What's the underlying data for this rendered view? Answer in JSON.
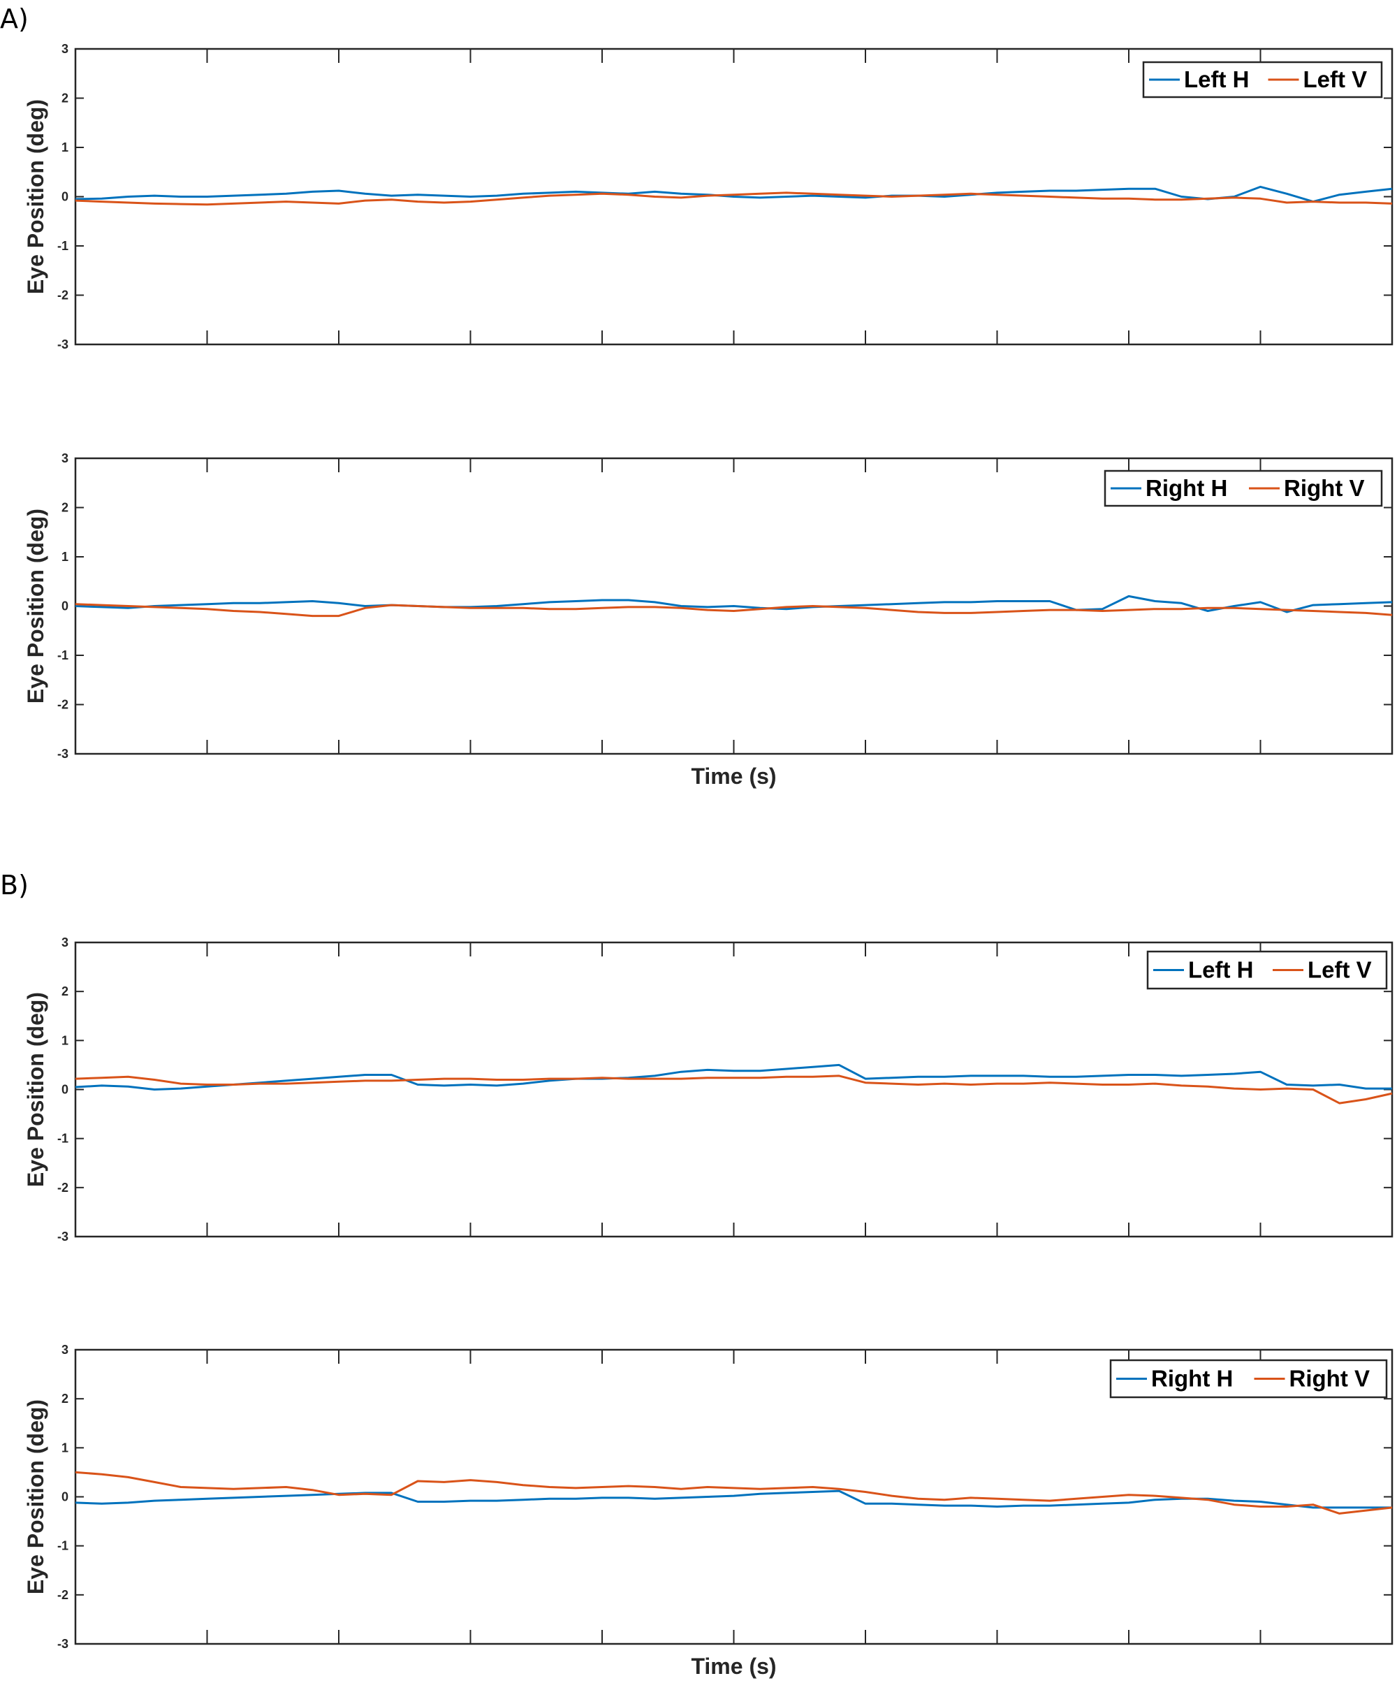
{
  "panels": [
    {
      "label": "A)"
    },
    {
      "label": "B)"
    }
  ],
  "colors": {
    "blue": "#0072BD",
    "orange": "#D95319",
    "axis": "#262626"
  },
  "chart_data": [
    {
      "type": "line",
      "panel": "A)",
      "xlabel": "",
      "ylabel": "Eye Position (deg)",
      "ylim": [
        -3,
        3
      ],
      "yticks": [
        "3",
        "2",
        "1",
        "0",
        "-1",
        "-2",
        "-3"
      ],
      "x_tick_count": 10,
      "legend": "top-right",
      "x": [
        0,
        2,
        4,
        6,
        8,
        10,
        12,
        14,
        16,
        18,
        20,
        22,
        24,
        26,
        28,
        30,
        32,
        34,
        36,
        38,
        40,
        42,
        44,
        46,
        48,
        50,
        52,
        54,
        56,
        58,
        60,
        62,
        64,
        66,
        68,
        70,
        72,
        74,
        76,
        78,
        80,
        82,
        84,
        86,
        88,
        90,
        92,
        94,
        96,
        98,
        100
      ],
      "series": [
        {
          "name": "Left H",
          "color": "#0072BD",
          "values": [
            -0.05,
            -0.04,
            0.0,
            0.02,
            0.0,
            0.0,
            0.02,
            0.04,
            0.06,
            0.1,
            0.12,
            0.06,
            0.02,
            0.04,
            0.02,
            0.0,
            0.02,
            0.06,
            0.08,
            0.1,
            0.08,
            0.06,
            0.1,
            0.06,
            0.04,
            0.0,
            -0.02,
            0.0,
            0.02,
            0.0,
            -0.02,
            0.02,
            0.02,
            0.0,
            0.04,
            0.08,
            0.1,
            0.12,
            0.12,
            0.14,
            0.16,
            0.16,
            0.0,
            -0.05,
            0.0,
            0.2,
            0.06,
            -0.1,
            0.04,
            0.1,
            0.16
          ]
        },
        {
          "name": "Left V",
          "color": "#D95319",
          "values": [
            -0.08,
            -0.1,
            -0.12,
            -0.14,
            -0.15,
            -0.16,
            -0.14,
            -0.12,
            -0.1,
            -0.12,
            -0.14,
            -0.08,
            -0.06,
            -0.1,
            -0.12,
            -0.1,
            -0.06,
            -0.02,
            0.02,
            0.04,
            0.06,
            0.04,
            0.0,
            -0.02,
            0.02,
            0.04,
            0.06,
            0.08,
            0.06,
            0.04,
            0.02,
            0.0,
            0.02,
            0.04,
            0.06,
            0.04,
            0.02,
            0.0,
            -0.02,
            -0.04,
            -0.04,
            -0.06,
            -0.06,
            -0.04,
            -0.02,
            -0.04,
            -0.12,
            -0.1,
            -0.12,
            -0.12,
            -0.14
          ]
        }
      ]
    },
    {
      "type": "line",
      "panel": "A)",
      "xlabel": "Time (s)",
      "ylabel": "Eye Position (deg)",
      "ylim": [
        -3,
        3
      ],
      "yticks": [
        "3",
        "2",
        "1",
        "0",
        "-1",
        "-2",
        "-3"
      ],
      "x_tick_count": 10,
      "legend": "top-right",
      "x": [
        0,
        2,
        4,
        6,
        8,
        10,
        12,
        14,
        16,
        18,
        20,
        22,
        24,
        26,
        28,
        30,
        32,
        34,
        36,
        38,
        40,
        42,
        44,
        46,
        48,
        50,
        52,
        54,
        56,
        58,
        60,
        62,
        64,
        66,
        68,
        70,
        72,
        74,
        76,
        78,
        80,
        82,
        84,
        86,
        88,
        90,
        92,
        94,
        96,
        98,
        100
      ],
      "series": [
        {
          "name": "Right H",
          "color": "#0072BD",
          "values": [
            0.0,
            -0.02,
            -0.04,
            0.0,
            0.02,
            0.04,
            0.06,
            0.06,
            0.08,
            0.1,
            0.06,
            0.0,
            0.02,
            0.0,
            -0.02,
            -0.02,
            0.0,
            0.04,
            0.08,
            0.1,
            0.12,
            0.12,
            0.08,
            0.0,
            -0.02,
            0.0,
            -0.04,
            -0.06,
            -0.02,
            0.0,
            0.02,
            0.04,
            0.06,
            0.08,
            0.08,
            0.1,
            0.1,
            0.1,
            -0.08,
            -0.06,
            0.2,
            0.1,
            0.06,
            -0.1,
            0.0,
            0.08,
            -0.12,
            0.02,
            0.04,
            0.06,
            0.08
          ]
        },
        {
          "name": "Right V",
          "color": "#D95319",
          "values": [
            0.04,
            0.02,
            0.0,
            -0.02,
            -0.04,
            -0.06,
            -0.1,
            -0.12,
            -0.16,
            -0.2,
            -0.2,
            -0.04,
            0.02,
            0.0,
            -0.02,
            -0.04,
            -0.04,
            -0.04,
            -0.06,
            -0.06,
            -0.04,
            -0.02,
            -0.02,
            -0.04,
            -0.08,
            -0.1,
            -0.06,
            -0.02,
            0.0,
            -0.02,
            -0.04,
            -0.08,
            -0.12,
            -0.14,
            -0.14,
            -0.12,
            -0.1,
            -0.08,
            -0.08,
            -0.1,
            -0.08,
            -0.06,
            -0.06,
            -0.04,
            -0.04,
            -0.06,
            -0.08,
            -0.1,
            -0.12,
            -0.14,
            -0.18
          ]
        }
      ]
    },
    {
      "type": "line",
      "panel": "B)",
      "xlabel": "",
      "ylabel": "Eye Position (deg)",
      "ylim": [
        -3,
        3
      ],
      "yticks": [
        "3",
        "2",
        "1",
        "0",
        "-1",
        "-2",
        "-3"
      ],
      "x_tick_count": 10,
      "legend": "top-right",
      "x": [
        0,
        2,
        4,
        6,
        8,
        10,
        12,
        14,
        16,
        18,
        20,
        22,
        24,
        26,
        28,
        30,
        32,
        34,
        36,
        38,
        40,
        42,
        44,
        46,
        48,
        50,
        52,
        54,
        56,
        58,
        60,
        62,
        64,
        66,
        68,
        70,
        72,
        74,
        76,
        78,
        80,
        82,
        84,
        86,
        88,
        90,
        92,
        94,
        96,
        98,
        100
      ],
      "series": [
        {
          "name": "Left H",
          "color": "#0072BD",
          "values": [
            0.05,
            0.08,
            0.06,
            0.0,
            0.02,
            0.06,
            0.1,
            0.14,
            0.18,
            0.22,
            0.26,
            0.3,
            0.3,
            0.1,
            0.08,
            0.1,
            0.08,
            0.12,
            0.18,
            0.22,
            0.22,
            0.24,
            0.28,
            0.36,
            0.4,
            0.38,
            0.38,
            0.42,
            0.46,
            0.5,
            0.22,
            0.24,
            0.26,
            0.26,
            0.28,
            0.28,
            0.28,
            0.26,
            0.26,
            0.28,
            0.3,
            0.3,
            0.28,
            0.3,
            0.32,
            0.36,
            0.1,
            0.08,
            0.1,
            0.02,
            0.02
          ]
        },
        {
          "name": "Left V",
          "color": "#D95319",
          "values": [
            0.22,
            0.24,
            0.26,
            0.2,
            0.12,
            0.1,
            0.1,
            0.12,
            0.12,
            0.14,
            0.16,
            0.18,
            0.18,
            0.2,
            0.22,
            0.22,
            0.2,
            0.2,
            0.22,
            0.22,
            0.24,
            0.22,
            0.22,
            0.22,
            0.24,
            0.24,
            0.24,
            0.26,
            0.26,
            0.28,
            0.14,
            0.12,
            0.1,
            0.12,
            0.1,
            0.12,
            0.12,
            0.14,
            0.12,
            0.1,
            0.1,
            0.12,
            0.08,
            0.06,
            0.02,
            0.0,
            0.02,
            0.0,
            -0.28,
            -0.2,
            -0.08
          ]
        }
      ]
    },
    {
      "type": "line",
      "panel": "B)",
      "xlabel": "Time (s)",
      "ylabel": "Eye Position (deg)",
      "ylim": [
        -3,
        3
      ],
      "yticks": [
        "3",
        "2",
        "1",
        "0",
        "-1",
        "-2",
        "-3"
      ],
      "x_tick_count": 10,
      "legend": "top-right",
      "x": [
        0,
        2,
        4,
        6,
        8,
        10,
        12,
        14,
        16,
        18,
        20,
        22,
        24,
        26,
        28,
        30,
        32,
        34,
        36,
        38,
        40,
        42,
        44,
        46,
        48,
        50,
        52,
        54,
        56,
        58,
        60,
        62,
        64,
        66,
        68,
        70,
        72,
        74,
        76,
        78,
        80,
        82,
        84,
        86,
        88,
        90,
        92,
        94,
        96,
        98,
        100
      ],
      "series": [
        {
          "name": "Right H",
          "color": "#0072BD",
          "values": [
            -0.12,
            -0.14,
            -0.12,
            -0.08,
            -0.06,
            -0.04,
            -0.02,
            0.0,
            0.02,
            0.04,
            0.06,
            0.08,
            0.08,
            -0.1,
            -0.1,
            -0.08,
            -0.08,
            -0.06,
            -0.04,
            -0.04,
            -0.02,
            -0.02,
            -0.04,
            -0.02,
            0.0,
            0.02,
            0.06,
            0.08,
            0.1,
            0.12,
            -0.14,
            -0.14,
            -0.16,
            -0.18,
            -0.18,
            -0.2,
            -0.18,
            -0.18,
            -0.16,
            -0.14,
            -0.12,
            -0.06,
            -0.04,
            -0.04,
            -0.08,
            -0.1,
            -0.16,
            -0.22,
            -0.22,
            -0.22,
            -0.22
          ]
        },
        {
          "name": "Right V",
          "color": "#D95319",
          "values": [
            0.5,
            0.46,
            0.4,
            0.3,
            0.2,
            0.18,
            0.16,
            0.18,
            0.2,
            0.14,
            0.04,
            0.06,
            0.04,
            0.32,
            0.3,
            0.34,
            0.3,
            0.24,
            0.2,
            0.18,
            0.2,
            0.22,
            0.2,
            0.16,
            0.2,
            0.18,
            0.16,
            0.18,
            0.2,
            0.16,
            0.1,
            0.02,
            -0.04,
            -0.06,
            -0.02,
            -0.04,
            -0.06,
            -0.08,
            -0.04,
            0.0,
            0.04,
            0.02,
            -0.02,
            -0.06,
            -0.16,
            -0.2,
            -0.2,
            -0.16,
            -0.34,
            -0.28,
            -0.22
          ]
        }
      ]
    }
  ]
}
